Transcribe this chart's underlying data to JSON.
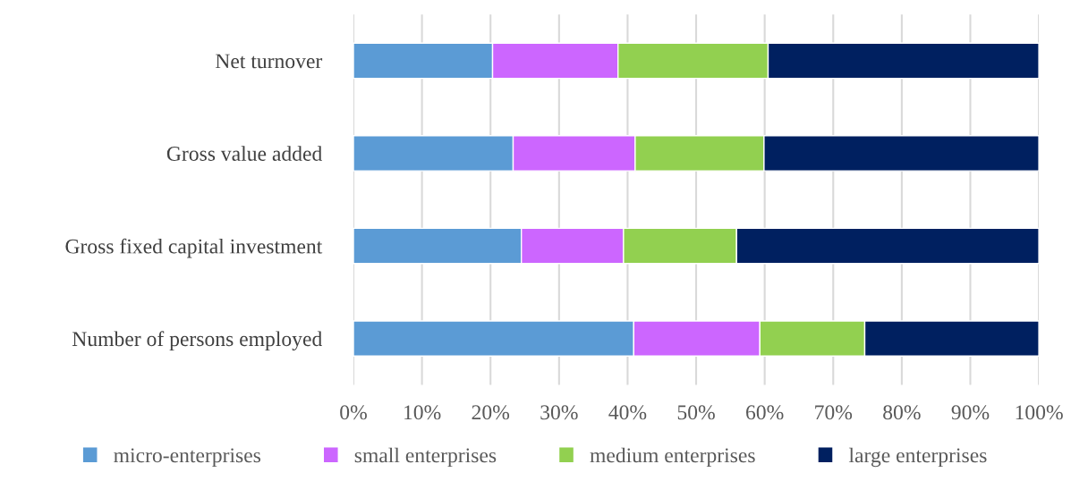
{
  "chart_data": {
    "type": "bar",
    "orientation": "horizontal",
    "stacked": true,
    "categories": [
      "Net turnover",
      "Gross value added",
      "Gross fixed capital investment",
      "Number of persons employed"
    ],
    "series": [
      {
        "name": "micro-enterprises",
        "color": "#5b9bd5",
        "values": [
          20.3,
          23.3,
          24.5,
          40.9
        ]
      },
      {
        "name": "small enterprises",
        "color": "#cc66ff",
        "values": [
          18.3,
          17.8,
          14.9,
          18.4
        ]
      },
      {
        "name": "medium enterprises",
        "color": "#92d050",
        "values": [
          21.9,
          18.8,
          16.5,
          15.3
        ]
      },
      {
        "name": "large enterprises",
        "color": "#002060",
        "values": [
          39.5,
          40.1,
          44.1,
          25.4
        ]
      }
    ],
    "xlim": [
      0,
      100
    ],
    "xticks": [
      {
        "value": 0,
        "label": "0%"
      },
      {
        "value": 10,
        "label": "10%"
      },
      {
        "value": 20,
        "label": "20%"
      },
      {
        "value": 30,
        "label": "30%"
      },
      {
        "value": 40,
        "label": "40%"
      },
      {
        "value": 50,
        "label": "50%"
      },
      {
        "value": 60,
        "label": "60%"
      },
      {
        "value": 70,
        "label": "70%"
      },
      {
        "value": 80,
        "label": "80%"
      },
      {
        "value": 90,
        "label": "90%"
      },
      {
        "value": 100,
        "label": "100%"
      }
    ],
    "grid": "x",
    "legend": "bottom"
  }
}
